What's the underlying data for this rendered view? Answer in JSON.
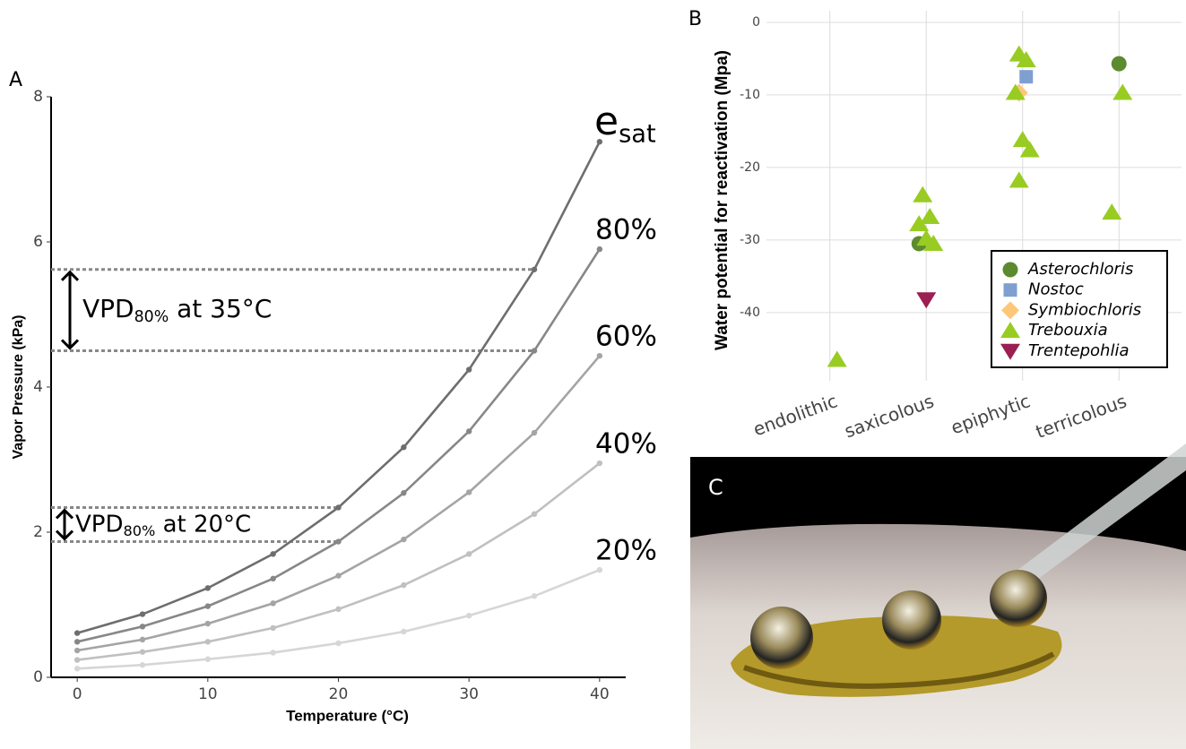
{
  "chart_data": [
    {
      "type": "line",
      "panel_label": "A",
      "x_label": "Temperature (°C)",
      "y_label": "Vapor Pressure (kPa)",
      "x": [
        0,
        5,
        10,
        15,
        20,
        25,
        30,
        35,
        40
      ],
      "xlim": [
        -2,
        42
      ],
      "xticks": [
        0,
        10,
        20,
        30,
        40
      ],
      "ylim": [
        0,
        8
      ],
      "yticks": [
        0,
        2,
        4,
        6,
        8
      ],
      "grid": false,
      "series": [
        {
          "name": "e",
          "subscript": "sat",
          "color": "#6e6e6e",
          "values": [
            0.61,
            0.87,
            1.23,
            1.7,
            2.34,
            3.17,
            4.24,
            5.62,
            7.38
          ]
        },
        {
          "name": "80%",
          "color": "#878787",
          "values": [
            0.49,
            0.7,
            0.98,
            1.36,
            1.87,
            2.54,
            3.39,
            4.5,
            5.9
          ]
        },
        {
          "name": "60%",
          "color": "#a4a4a4",
          "values": [
            0.37,
            0.52,
            0.74,
            1.02,
            1.4,
            1.9,
            2.55,
            3.37,
            4.43
          ]
        },
        {
          "name": "40%",
          "color": "#c0c0c0",
          "values": [
            0.24,
            0.35,
            0.49,
            0.68,
            0.94,
            1.27,
            1.7,
            2.25,
            2.95
          ]
        },
        {
          "name": "20%",
          "color": "#d6d6d6",
          "values": [
            0.12,
            0.17,
            0.25,
            0.34,
            0.47,
            0.63,
            0.85,
            1.12,
            1.48
          ]
        }
      ],
      "annotations": [
        {
          "text": "VPD",
          "subscript": "80%",
          "suffix": " at 35°C"
        },
        {
          "text": "VPD",
          "subscript": "80%",
          "suffix": " at 20°C"
        }
      ]
    },
    {
      "type": "scatter",
      "panel_label": "B",
      "y_label": "Water potential for reactivation (Mpa)",
      "categories": [
        "endolithic",
        "saxicolous",
        "epiphytic",
        "terricolous"
      ],
      "ylim": [
        -49.4,
        1.6
      ],
      "yticks": [
        0,
        -10,
        -20,
        -30,
        -40
      ],
      "grid": true,
      "legend": "bottom-right",
      "series": [
        {
          "name": "Asterochloris",
          "color": "#5b8a2f",
          "shape": "circle",
          "x": [
            "saxicolous",
            "terricolous"
          ],
          "values": [
            -30.5,
            -5.7
          ]
        },
        {
          "name": "Nostoc",
          "color": "#7f9fd0",
          "shape": "square",
          "x": [
            "epiphytic"
          ],
          "values": [
            -7.5
          ]
        },
        {
          "name": "Symbiochloris",
          "color": "#fdc77a",
          "shape": "diamond",
          "x": [
            "epiphytic"
          ],
          "values": [
            -9.7
          ]
        },
        {
          "name": "Trebouxia",
          "color": "#99cc22",
          "shape": "triangle",
          "x": [
            "endolithic",
            "saxicolous",
            "saxicolous",
            "saxicolous",
            "saxicolous",
            "saxicolous",
            "epiphytic",
            "epiphytic",
            "epiphytic",
            "epiphytic",
            "epiphytic",
            "epiphytic",
            "terricolous",
            "terricolous"
          ],
          "values": [
            -46.5,
            -23.8,
            -26.8,
            -27.8,
            -29.8,
            -30.5,
            -4.4,
            -5.2,
            -9.7,
            -16.2,
            -17.6,
            -21.8,
            -9.7,
            -26.2
          ]
        },
        {
          "name": "Trentepohlia",
          "color": "#9b1f52",
          "shape": "triangle-down",
          "x": [
            "saxicolous"
          ],
          "values": [
            -38.2
          ]
        }
      ]
    }
  ],
  "photo": {
    "panel_label": "C"
  }
}
